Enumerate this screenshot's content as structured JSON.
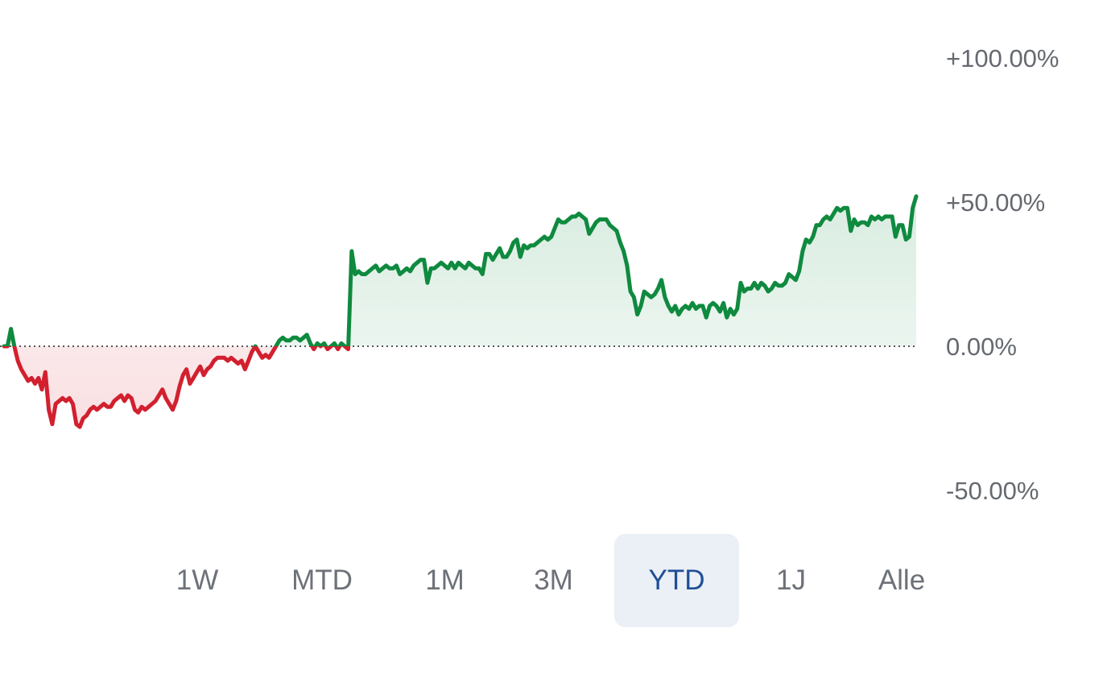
{
  "chart_data": {
    "type": "line",
    "ylim": [
      -68,
      110
    ],
    "yticks": [
      {
        "value": 100,
        "label": "+100.00%"
      },
      {
        "value": 50,
        "label": "+50.00%"
      },
      {
        "value": 0,
        "label": "0.00%"
      },
      {
        "value": -50,
        "label": "-50.00%"
      }
    ],
    "baseline": 0,
    "colors": {
      "positive": "#0f8a3f",
      "negative": "#d2202f",
      "baseline": "#555555"
    },
    "values": [
      0.0,
      0.0,
      6.0,
      0.0,
      -5.0,
      -8.0,
      -10.0,
      -12.0,
      -11.0,
      -13.0,
      -11.0,
      -15.0,
      -9.0,
      -22.0,
      -27.0,
      -20.0,
      -19.0,
      -18.0,
      -19.0,
      -18.0,
      -20.0,
      -27.0,
      -28.0,
      -25.0,
      -24.0,
      -22.0,
      -21.0,
      -22.0,
      -21.0,
      -20.0,
      -21.0,
      -21.0,
      -19.0,
      -18.0,
      -17.0,
      -19.0,
      -17.0,
      -18.0,
      -22.0,
      -23.0,
      -21.0,
      -22.0,
      -21.0,
      -20.0,
      -19.0,
      -17.0,
      -15.0,
      -18.0,
      -20.0,
      -22.0,
      -19.0,
      -14.0,
      -10.0,
      -8.0,
      -13.0,
      -11.0,
      -9.0,
      -7.0,
      -10.0,
      -8.0,
      -7.0,
      -5.0,
      -4.0,
      -4.0,
      -4.0,
      -5.0,
      -4.0,
      -5.0,
      -6.0,
      -5.0,
      -8.0,
      -5.0,
      -2.0,
      0.0,
      -2.0,
      -4.0,
      -3.0,
      -4.0,
      -2.0,
      0.0,
      2.0,
      3.0,
      2.0,
      2.0,
      3.0,
      3.0,
      2.0,
      3.0,
      4.0,
      1.0,
      -1.0,
      1.0,
      0.0,
      1.0,
      -1.0,
      0.0,
      1.0,
      -1.0,
      1.0,
      0.0,
      -1.0,
      33.0,
      25.0,
      26.0,
      25.0,
      25.0,
      26.0,
      27.0,
      28.0,
      26.0,
      27.0,
      28.0,
      27.0,
      27.0,
      28.0,
      25.0,
      26.0,
      27.0,
      26.0,
      28.0,
      29.0,
      30.0,
      30.0,
      22.0,
      27.0,
      27.0,
      28.0,
      29.0,
      28.0,
      27.0,
      29.0,
      27.0,
      29.0,
      28.0,
      27.0,
      29.0,
      28.0,
      27.0,
      27.0,
      25.0,
      32.0,
      32.0,
      30.0,
      32.0,
      34.0,
      31.0,
      31.0,
      33.0,
      36.0,
      37.0,
      31.0,
      35.0,
      34.0,
      35.0,
      35.0,
      36.0,
      37.0,
      38.0,
      37.0,
      38.0,
      41.0,
      44.0,
      43.0,
      43.0,
      44.0,
      45.0,
      45.0,
      46.0,
      45.0,
      44.0,
      39.0,
      41.0,
      43.0,
      44.0,
      44.0,
      44.0,
      42.0,
      41.0,
      40.0,
      36.0,
      33.0,
      28.0,
      19.0,
      17.0,
      11.0,
      14.0,
      19.0,
      18.0,
      17.0,
      18.0,
      20.0,
      23.0,
      17.0,
      14.0,
      12.0,
      14.0,
      11.0,
      13.0,
      14.0,
      13.0,
      15.0,
      13.0,
      14.0,
      14.0,
      10.0,
      14.0,
      15.0,
      14.0,
      12.0,
      15.0,
      10.0,
      13.0,
      11.0,
      13.0,
      22.0,
      19.0,
      20.0,
      20.0,
      22.0,
      20.0,
      22.0,
      21.0,
      19.0,
      20.0,
      22.0,
      21.0,
      21.0,
      22.0,
      25.0,
      24.0,
      23.0,
      26.0,
      33.0,
      37.0,
      36.0,
      38.0,
      42.0,
      42.0,
      44.0,
      45.0,
      44.0,
      46.0,
      48.0,
      47.0,
      48.0,
      48.0,
      40.0,
      44.0,
      42.0,
      43.0,
      43.0,
      42.0,
      45.0,
      44.0,
      45.0,
      44.0,
      45.0,
      45.0,
      45.0,
      38.0,
      42.0,
      42.0,
      37.0,
      38.0,
      48.0,
      52.0
    ]
  },
  "range_selector": {
    "options": [
      {
        "label": "1W"
      },
      {
        "label": "MTD"
      },
      {
        "label": "1M"
      },
      {
        "label": "3M"
      },
      {
        "label": "YTD",
        "active": true
      },
      {
        "label": "1J"
      },
      {
        "label": "Alle"
      }
    ]
  }
}
